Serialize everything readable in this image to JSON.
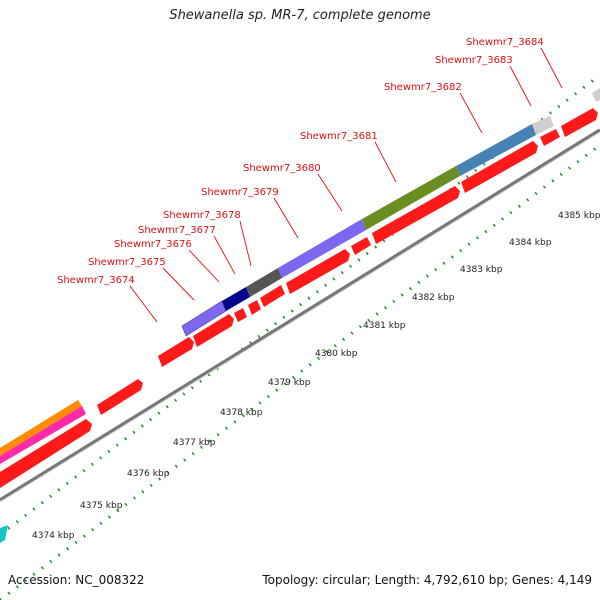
{
  "title": "Shewanella sp. MR-7, complete genome",
  "footer": {
    "accession": "Accession: NC_008322",
    "summary": "Topology: circular; Length: 4,792,610 bp; Genes: 4,149"
  },
  "colors": {
    "cds": "#ff0000",
    "backbone": "#808080",
    "gene_label": "#dd1111",
    "tick": "#1a8f1a"
  },
  "gene_labels": [
    "Shewmr7_3674",
    "Shewmr7_3675",
    "Shewmr7_3676",
    "Shewmr7_3677",
    "Shewmr7_3678",
    "Shewmr7_3679",
    "Shewmr7_3680",
    "Shewmr7_3681",
    "Shewmr7_3682",
    "Shewmr7_3683",
    "Shewmr7_3684"
  ],
  "tick_labels": [
    "4374 kbp",
    "4375 kbp",
    "4376 kbp",
    "4377 kbp",
    "4378 kbp",
    "4379 kbp",
    "4380 kbp",
    "4381 kbp",
    "4382 kbp",
    "4383 kbp",
    "4384 kbp",
    "4385 kbp"
  ]
}
